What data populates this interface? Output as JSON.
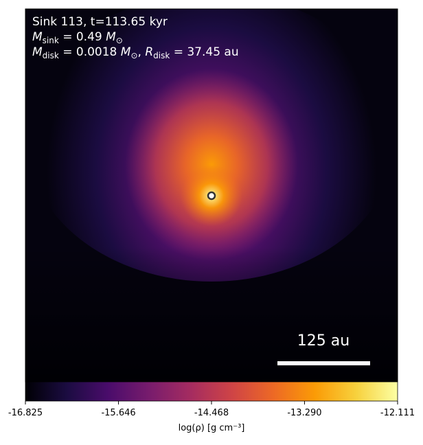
{
  "chart_data": {
    "type": "image",
    "annotations": [
      [
        {
          "text": "Sink 113, t=113.65 kyr"
        }
      ],
      [
        {
          "text": "M",
          "italic": true
        },
        {
          "text": "sink",
          "sub": true
        },
        {
          "text": " = 0.49 "
        },
        {
          "text": "M",
          "italic": true
        },
        {
          "text": "⊙",
          "sub": true
        }
      ],
      [
        {
          "text": "M",
          "italic": true
        },
        {
          "text": "disk",
          "sub": true
        },
        {
          "text": " = 0.0018 "
        },
        {
          "text": "M",
          "italic": true
        },
        {
          "text": "⊙",
          "sub": true
        },
        {
          "text": ", "
        },
        {
          "text": "R",
          "italic": true
        },
        {
          "text": "disk",
          "sub": true
        },
        {
          "text": " = 37.45 au"
        }
      ]
    ],
    "scale_bar_label": "125 au",
    "colorbar_label": "log(ρ) [g cm⁻³]",
    "clim": [
      -16.825,
      -12.111
    ],
    "cticks": [
      -16.825,
      -15.646,
      -14.468,
      {
        "value": -13.29,
        "label": "-13.290"
      },
      -12.111
    ],
    "colormap": [
      "#000004",
      "#1b0c41",
      "#4a0c6b",
      "#781c6d",
      "#a52c60",
      "#cf4446",
      "#ed6925",
      "#fb9b06",
      "#f7d13d",
      "#fcffa4"
    ]
  }
}
